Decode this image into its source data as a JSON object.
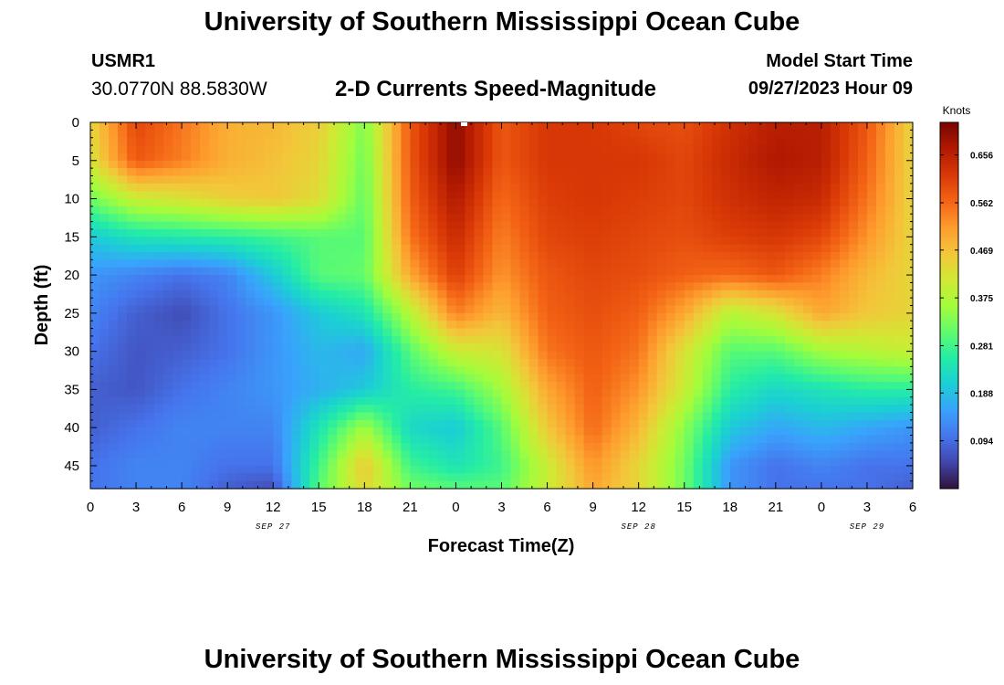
{
  "header": {
    "title": "University of Southern Mississippi Ocean Cube",
    "station_id": "USMR1",
    "coords": "30.0770N  88.5830W",
    "plot_title": "2-D Currents Speed-Magnitude",
    "start_label": "Model Start Time",
    "start_value": "09/27/2023 Hour 09"
  },
  "footer": {
    "title": "University of Southern Mississippi Ocean Cube"
  },
  "chart_data": {
    "type": "heatmap",
    "title": "2-D Currents Speed-Magnitude",
    "xlabel": "Forecast Time(Z)",
    "ylabel": "Depth (ft)",
    "x_range": [
      0,
      54
    ],
    "y_range": [
      0,
      48
    ],
    "x_ticks": [
      0,
      3,
      6,
      9,
      12,
      15,
      18,
      21,
      24,
      27,
      30,
      33,
      36,
      39,
      42,
      45,
      48,
      51,
      54
    ],
    "x_tick_labels": [
      "0",
      "3",
      "6",
      "9",
      "12",
      "15",
      "18",
      "21",
      "0",
      "3",
      "6",
      "9",
      "12",
      "15",
      "18",
      "21",
      "0",
      "3",
      "6"
    ],
    "y_ticks": [
      0,
      5,
      10,
      15,
      20,
      25,
      30,
      35,
      40,
      45
    ],
    "y_tick_labels": [
      "0",
      "5",
      "10",
      "15",
      "20",
      "25",
      "30",
      "35",
      "40",
      "45"
    ],
    "date_labels": [
      {
        "x": 12,
        "text": "SEP 27"
      },
      {
        "x": 36,
        "text": "SEP 28"
      },
      {
        "x": 51,
        "text": "SEP 29"
      }
    ],
    "colorbar": {
      "unit": "Knots",
      "min": 0.0,
      "max": 0.72,
      "tick_values": [
        0.094,
        0.188,
        0.281,
        0.375,
        0.469,
        0.562,
        0.656
      ],
      "tick_labels": [
        "0.094",
        "0.188",
        "0.281",
        "0.375",
        "0.469",
        "0.562",
        "0.656"
      ],
      "colors": [
        "#30123b",
        "#4145ab",
        "#4675ed",
        "#39a2fc",
        "#1bcfd4",
        "#24eca6",
        "#61fc6c",
        "#a4fc3b",
        "#d1e834",
        "#f3c63a",
        "#fe9b2d",
        "#f36315",
        "#d93806",
        "#b11901",
        "#7a0402"
      ]
    },
    "time_columns_x": [
      0,
      3,
      6,
      9,
      12,
      15,
      18,
      21,
      24,
      27,
      30,
      33,
      36,
      39,
      42,
      45,
      48,
      51,
      54
    ],
    "depth_rows_y": [
      0,
      5,
      10,
      15,
      20,
      25,
      30,
      35,
      40,
      45,
      48
    ],
    "speed_knots": [
      [
        0.44,
        0.6,
        0.55,
        0.49,
        0.48,
        0.45,
        0.33,
        0.58,
        0.7,
        0.58,
        0.62,
        0.62,
        0.6,
        0.59,
        0.63,
        0.66,
        0.66,
        0.58,
        0.44
      ],
      [
        0.42,
        0.58,
        0.54,
        0.49,
        0.47,
        0.44,
        0.32,
        0.58,
        0.7,
        0.58,
        0.62,
        0.62,
        0.62,
        0.6,
        0.64,
        0.67,
        0.66,
        0.57,
        0.44
      ],
      [
        0.32,
        0.4,
        0.42,
        0.45,
        0.46,
        0.43,
        0.31,
        0.57,
        0.67,
        0.56,
        0.61,
        0.62,
        0.61,
        0.6,
        0.63,
        0.65,
        0.64,
        0.55,
        0.44
      ],
      [
        0.2,
        0.24,
        0.25,
        0.26,
        0.28,
        0.3,
        0.3,
        0.55,
        0.64,
        0.54,
        0.6,
        0.61,
        0.6,
        0.59,
        0.61,
        0.62,
        0.6,
        0.52,
        0.44
      ],
      [
        0.14,
        0.12,
        0.1,
        0.12,
        0.2,
        0.3,
        0.31,
        0.5,
        0.61,
        0.52,
        0.58,
        0.6,
        0.59,
        0.57,
        0.56,
        0.58,
        0.54,
        0.48,
        0.44
      ],
      [
        0.12,
        0.08,
        0.06,
        0.1,
        0.14,
        0.2,
        0.24,
        0.38,
        0.54,
        0.48,
        0.57,
        0.59,
        0.57,
        0.5,
        0.38,
        0.42,
        0.5,
        0.46,
        0.44
      ],
      [
        0.1,
        0.07,
        0.08,
        0.1,
        0.14,
        0.18,
        0.16,
        0.3,
        0.4,
        0.42,
        0.55,
        0.58,
        0.55,
        0.42,
        0.3,
        0.3,
        0.36,
        0.38,
        0.4
      ],
      [
        0.08,
        0.07,
        0.1,
        0.12,
        0.14,
        0.17,
        0.2,
        0.26,
        0.28,
        0.36,
        0.5,
        0.57,
        0.52,
        0.4,
        0.26,
        0.22,
        0.24,
        0.26,
        0.26
      ],
      [
        0.08,
        0.1,
        0.12,
        0.12,
        0.12,
        0.24,
        0.36,
        0.22,
        0.2,
        0.3,
        0.46,
        0.56,
        0.48,
        0.34,
        0.2,
        0.16,
        0.18,
        0.16,
        0.14
      ],
      [
        0.1,
        0.12,
        0.12,
        0.1,
        0.1,
        0.28,
        0.46,
        0.28,
        0.24,
        0.28,
        0.4,
        0.52,
        0.44,
        0.32,
        0.14,
        0.1,
        0.12,
        0.1,
        0.1
      ],
      [
        0.1,
        0.12,
        0.12,
        0.08,
        0.06,
        0.3,
        0.44,
        0.32,
        0.3,
        0.3,
        0.4,
        0.5,
        0.44,
        0.32,
        0.14,
        0.1,
        0.1,
        0.1,
        0.08
      ]
    ]
  }
}
